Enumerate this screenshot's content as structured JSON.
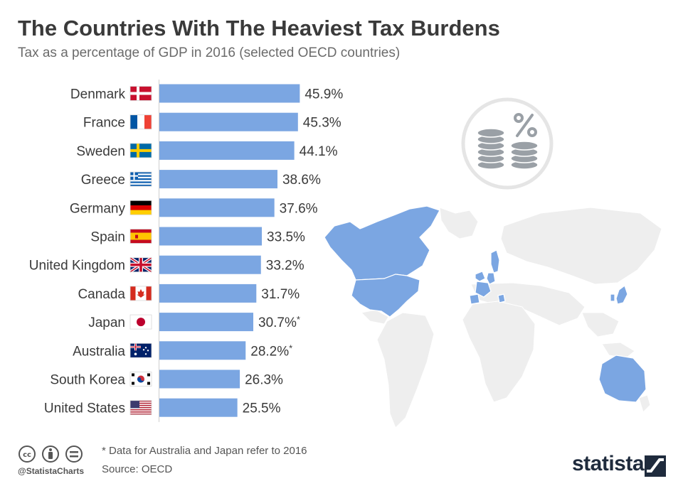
{
  "header": {
    "title": "The Countries With The Heaviest Tax Burdens",
    "subtitle": "Tax as a percentage of GDP in 2016 (selected OECD countries)"
  },
  "chart_data": {
    "type": "bar",
    "orientation": "horizontal",
    "title": "The Countries With The Heaviest Tax Burdens",
    "subtitle": "Tax as a percentage of GDP in 2016 (selected OECD countries)",
    "unit": "%",
    "categories": [
      "Denmark",
      "France",
      "Sweden",
      "Greece",
      "Germany",
      "Spain",
      "United Kingdom",
      "Canada",
      "Japan",
      "Australia",
      "South Korea",
      "United States"
    ],
    "values": [
      45.9,
      45.3,
      44.1,
      38.6,
      37.6,
      33.5,
      33.2,
      31.7,
      30.7,
      28.2,
      26.3,
      25.5
    ],
    "value_labels": [
      "45.9%",
      "45.3%",
      "44.1%",
      "38.6%",
      "37.6%",
      "33.5%",
      "33.2%",
      "31.7%",
      "30.7%",
      "28.2%",
      "26.3%",
      "25.5%"
    ],
    "label_markers": [
      "",
      "",
      "",
      "",
      "",
      "",
      "",
      "",
      "*",
      "*",
      "",
      ""
    ],
    "bar_color": "#7ba6e2",
    "grid": false,
    "legend": "none"
  },
  "footer": {
    "footnote": "* Data for Australia and Japan refer to 2016",
    "source": "Source: OECD",
    "handle": "@StatistaCharts",
    "brand": "statista"
  },
  "colors": {
    "map_highlight": "#7ba6e2",
    "map_base": "#eeeeee",
    "icon_gray": "#9aa0a6",
    "brand_dark": "#1f2b3d"
  },
  "icons": [
    "coins-percent-icon",
    "world-map-illustration",
    "cc-license-icons",
    "statista-logo-icon"
  ]
}
